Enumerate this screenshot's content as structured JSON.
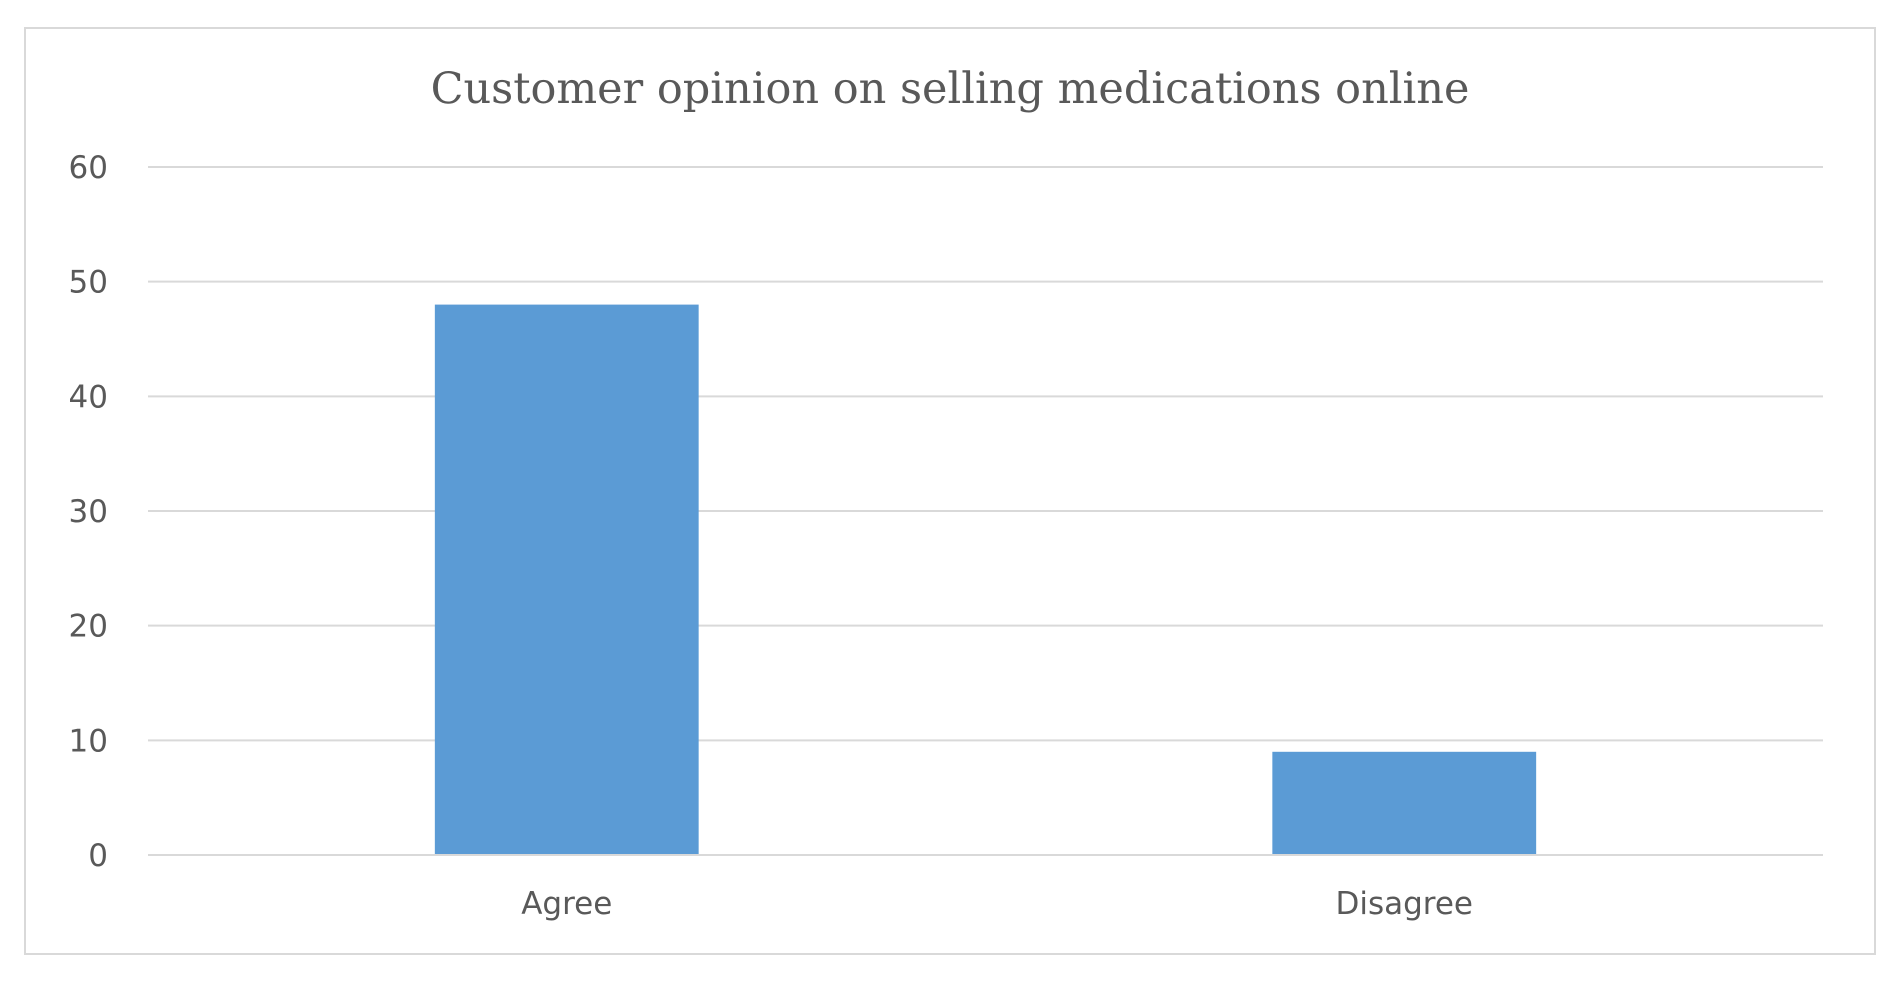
{
  "chart_data": {
    "type": "bar",
    "title": "Customer opinion on selling medications online",
    "categories": [
      "Agree",
      "Disagree"
    ],
    "values": [
      48,
      9
    ],
    "ylim": [
      0,
      60
    ],
    "yticks": [
      0,
      10,
      20,
      30,
      40,
      50,
      60
    ],
    "xlabel": "",
    "ylabel": "",
    "grid": true,
    "legend": "none",
    "bar_color": "#5b9bd5"
  }
}
